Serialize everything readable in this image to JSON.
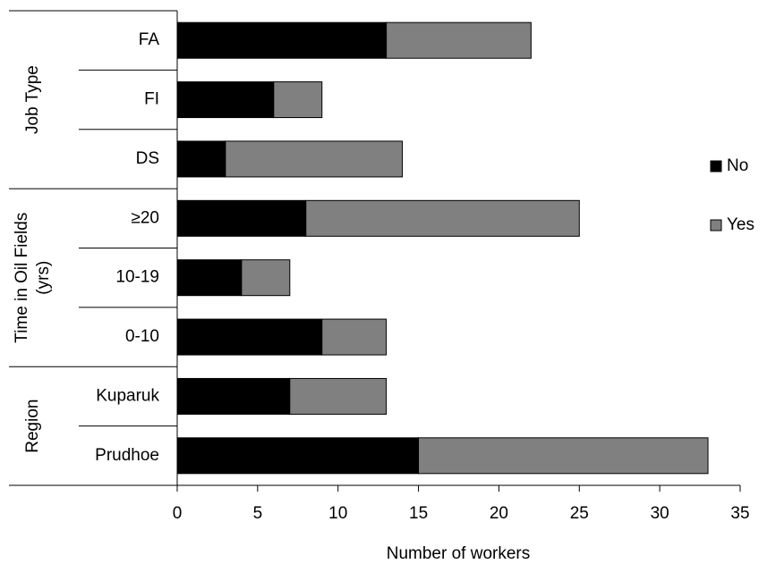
{
  "chart_data": {
    "type": "bar",
    "orientation": "horizontal",
    "stacked": true,
    "groups": [
      {
        "label": [
          "Job Type"
        ],
        "categories": [
          "FA",
          "FI",
          "DS"
        ]
      },
      {
        "label": [
          "Time in Oil Fields",
          "(yrs)"
        ],
        "categories": [
          "≥20",
          "10-19",
          "0-10"
        ]
      },
      {
        "label": [
          "Region"
        ],
        "categories": [
          "Kuparuk",
          "Prudhoe"
        ]
      }
    ],
    "series": [
      {
        "name": "No",
        "color": "#000000",
        "values": [
          13,
          6,
          3,
          8,
          4,
          9,
          7,
          15
        ]
      },
      {
        "name": "Yes",
        "color": "#808080",
        "values": [
          9,
          3,
          11,
          17,
          3,
          4,
          6,
          18
        ]
      }
    ],
    "xlabel": "Number of workers",
    "xlim": [
      0,
      35
    ],
    "xticks": [
      0,
      5,
      10,
      15,
      20,
      25,
      30,
      35
    ],
    "legend": "right"
  }
}
